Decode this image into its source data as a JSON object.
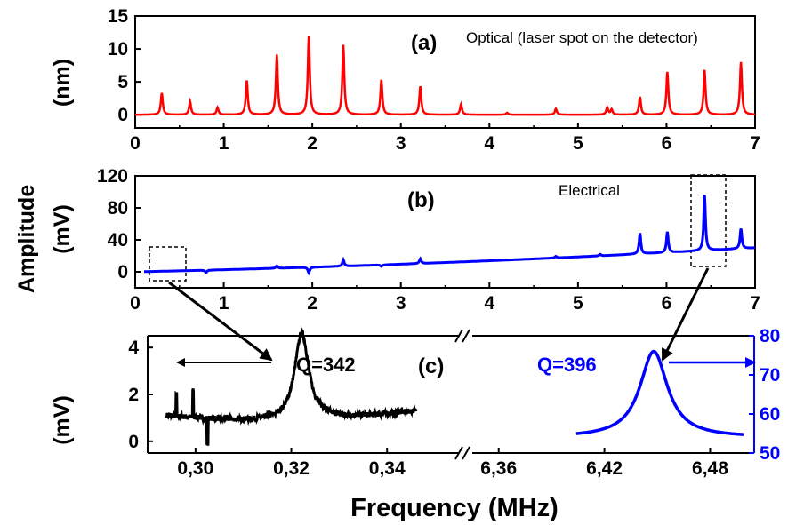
{
  "chart_data": [
    {
      "type": "line",
      "panel_label": "(a)",
      "annotation": "Optical (laser spot on the detector)",
      "ylabel": "(nm)",
      "xlim": [
        0,
        7
      ],
      "ylim": [
        -2,
        15
      ],
      "x_ticks": [
        "0",
        "1",
        "2",
        "3",
        "4",
        "5",
        "6",
        "7"
      ],
      "y_ticks": [
        "0",
        "5",
        "10",
        "15"
      ],
      "y_tick_values": [
        0,
        5,
        10,
        15
      ],
      "color": "#ff0000",
      "baseline": 0,
      "peaks": [
        {
          "x": 0.3,
          "y": 3.3
        },
        {
          "x": 0.62,
          "y": 2.0
        },
        {
          "x": 0.93,
          "y": 1.1
        },
        {
          "x": 1.26,
          "y": 5.2
        },
        {
          "x": 1.6,
          "y": 9.1
        },
        {
          "x": 1.96,
          "y": 12.0
        },
        {
          "x": 2.35,
          "y": 10.6
        },
        {
          "x": 2.78,
          "y": 5.3
        },
        {
          "x": 3.22,
          "y": 4.3
        },
        {
          "x": 3.68,
          "y": 1.6
        },
        {
          "x": 4.2,
          "y": 0.3
        },
        {
          "x": 4.75,
          "y": 0.9
        },
        {
          "x": 5.33,
          "y": 1.1
        },
        {
          "x": 5.38,
          "y": 0.8
        },
        {
          "x": 5.7,
          "y": 2.7
        },
        {
          "x": 6.01,
          "y": 6.5
        },
        {
          "x": 6.43,
          "y": 6.8
        },
        {
          "x": 6.84,
          "y": 8.0
        }
      ]
    },
    {
      "type": "line",
      "panel_label": "(b)",
      "annotation": "Electrical",
      "ylabel": "(mV)",
      "xlim": [
        0,
        7
      ],
      "ylim": [
        -20,
        120
      ],
      "x_ticks": [
        "0",
        "1",
        "2",
        "3",
        "4",
        "5",
        "6",
        "7"
      ],
      "y_ticks": [
        "0",
        "40",
        "80",
        "120"
      ],
      "y_tick_values": [
        0,
        40,
        80,
        120
      ],
      "color": "#0000ff",
      "baseline_start": 0,
      "baseline_end": 30,
      "peaks": [
        {
          "x": 0.8,
          "y": -3
        },
        {
          "x": 1.6,
          "y": 3
        },
        {
          "x": 1.96,
          "y": -7
        },
        {
          "x": 2.35,
          "y": 8
        },
        {
          "x": 2.78,
          "y": -2
        },
        {
          "x": 3.22,
          "y": 6
        },
        {
          "x": 4.75,
          "y": 2
        },
        {
          "x": 5.25,
          "y": 2
        },
        {
          "x": 5.7,
          "y": 26
        },
        {
          "x": 6.01,
          "y": 26
        },
        {
          "x": 6.43,
          "y": 70
        },
        {
          "x": 6.84,
          "y": 25
        }
      ]
    },
    {
      "type": "line",
      "panel_label": "(c)",
      "xlabel": "Frequency (MHz)",
      "left_ylabel": "(mV)",
      "left_series": {
        "color": "#000000",
        "xlim": [
          0.29,
          0.355
        ],
        "ylim": [
          -0.5,
          4.5
        ],
        "x_ticks": [
          "0,30",
          "0,32",
          "0,34"
        ],
        "x_tick_values": [
          0.3,
          0.32,
          0.34
        ],
        "y_ticks": [
          "0",
          "2",
          "4"
        ],
        "y_tick_values": [
          0,
          2,
          4
        ],
        "x_range": [
          0.294,
          0.346
        ],
        "peak_x": 0.3222,
        "peak_y": 4.4,
        "baseline": 0.6,
        "q_label": "Q=342",
        "spikes": [
          {
            "x": 0.296,
            "y": 2.0
          },
          {
            "x": 0.2995,
            "y": 2.2
          },
          {
            "x": 0.3025,
            "y": -0.1
          }
        ]
      },
      "right_series": {
        "color": "#0000ff",
        "xlim": [
          6.345,
          6.505
        ],
        "ylim": [
          50,
          80
        ],
        "x_ticks": [
          "6,36",
          "6,42",
          "6,48"
        ],
        "x_tick_values": [
          6.36,
          6.42,
          6.48
        ],
        "y_ticks": [
          "50",
          "60",
          "70",
          "80"
        ],
        "y_tick_values": [
          50,
          60,
          70,
          80
        ],
        "x_range": [
          6.404,
          6.499
        ],
        "peak_x": 6.448,
        "peak_y": 76.0,
        "baseline": 54.0,
        "q_label": "Q=396"
      },
      "axis_break": "//"
    }
  ]
}
